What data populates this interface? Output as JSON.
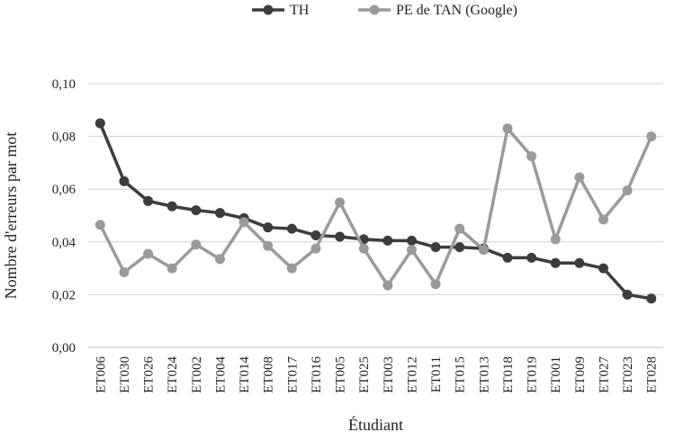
{
  "chart_data": {
    "type": "line",
    "xlabel": "Étudiant",
    "ylabel": "Nombre d'erreurs par mot",
    "ylim": [
      0,
      0.1
    ],
    "yticks": [
      "0,00",
      "0,02",
      "0,04",
      "0,06",
      "0,08",
      "0,10"
    ],
    "ytick_values": [
      0,
      0.02,
      0.04,
      0.06,
      0.08,
      0.1
    ],
    "grid": true,
    "legend_position": "top-center",
    "categories": [
      "ET006",
      "ET030",
      "ET026",
      "ET024",
      "ET002",
      "ET004",
      "ET014",
      "ET008",
      "ET017",
      "ET016",
      "ET005",
      "ET025",
      "ET003",
      "ET012",
      "ET011",
      "ET015",
      "ET013",
      "ET018",
      "ET019",
      "ET001",
      "ET009",
      "ET027",
      "ET023",
      "ET028"
    ],
    "series": [
      {
        "name": "TH",
        "color": "#3d3d3d",
        "values": [
          0.085,
          0.063,
          0.0555,
          0.0535,
          0.052,
          0.051,
          0.049,
          0.0455,
          0.045,
          0.0425,
          0.042,
          0.041,
          0.0405,
          0.0405,
          0.038,
          0.038,
          0.0375,
          0.034,
          0.034,
          0.032,
          0.032,
          0.03,
          0.02,
          0.0185
        ]
      },
      {
        "name": "PE de TAN (Google)",
        "color": "#9a9a9a",
        "values": [
          0.0465,
          0.0285,
          0.0355,
          0.03,
          0.039,
          0.0335,
          0.0475,
          0.0385,
          0.03,
          0.0375,
          0.055,
          0.0375,
          0.0235,
          0.037,
          0.024,
          0.045,
          0.037,
          0.083,
          0.0725,
          0.041,
          0.0645,
          0.0485,
          0.0595,
          0.08
        ]
      }
    ]
  }
}
